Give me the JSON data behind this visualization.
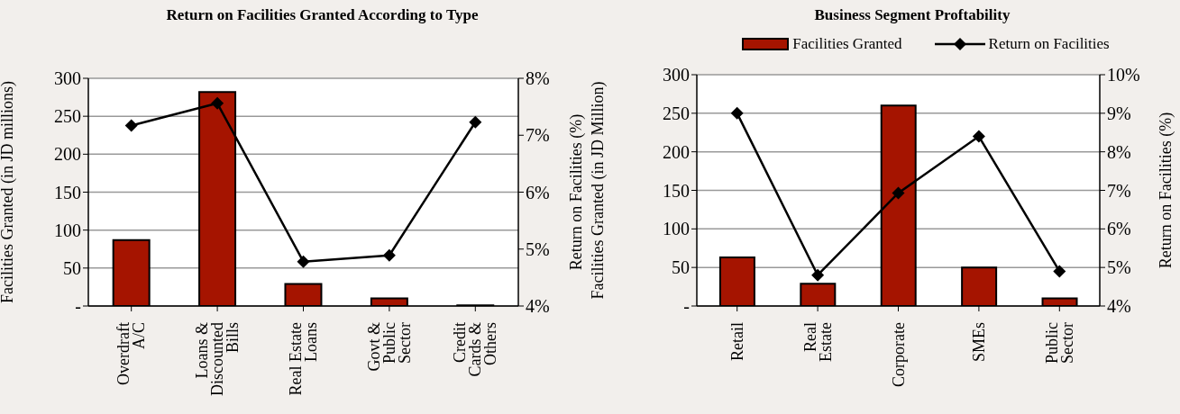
{
  "chart_data": [
    {
      "type": "bar",
      "title": "Return on Facilities Granted According to Type",
      "categories": [
        "Overdraft\nA/C",
        "Loans &\nDiscounted\nBills",
        "Real Estate\nLoans",
        "Govt &\nPublic\nSector",
        "Credit\nCards &\nOthers"
      ],
      "ylabel": "Facilities Granted (in JD millions)",
      "y2label": "Return on Facilities (%)",
      "series": [
        {
          "color": "#a51400",
          "values": [
            87,
            282,
            29,
            10,
            1
          ]
        },
        {
          "type": "line",
          "axis": "y2",
          "color": "#000000",
          "marker": "diamond",
          "values": [
            7.17,
            7.56,
            4.78,
            4.89,
            7.23
          ]
        }
      ],
      "ylim": [
        0,
        300
      ],
      "yticks": [
        {
          "value": 0,
          "label": "-"
        },
        50,
        100,
        150,
        200,
        250,
        300
      ],
      "y2lim": [
        4,
        8
      ],
      "y2ticks": [
        {
          "value": 4,
          "label": "4%"
        },
        {
          "value": 5,
          "label": "5%"
        },
        {
          "value": 6,
          "label": "6%"
        },
        {
          "value": 7,
          "label": "7%"
        },
        {
          "value": 8,
          "label": "8%"
        }
      ],
      "grid": "y",
      "legend": false
    },
    {
      "type": "bar",
      "title": "Business Segment Proftability",
      "categories": [
        "Retail",
        "Real\nEstate",
        "Corporate",
        "SMEs",
        "Public\nSector"
      ],
      "ylabel": "Facilities Granted (in JD Million)",
      "y2label": "Return on Facilities (%)",
      "series": [
        {
          "name": "Facilities Granted",
          "color": "#a51400",
          "values": [
            63,
            29,
            260,
            50,
            10
          ]
        },
        {
          "type": "line",
          "name": "Return on Facilities",
          "axis": "y2",
          "color": "#000000",
          "marker": "diamond",
          "values": [
            9.0,
            4.8,
            6.93,
            8.4,
            4.9
          ]
        }
      ],
      "ylim": [
        0,
        300
      ],
      "yticks": [
        {
          "value": 0,
          "label": "-"
        },
        50,
        100,
        150,
        200,
        250,
        300
      ],
      "y2lim": [
        4,
        10
      ],
      "y2ticks": [
        {
          "value": 4,
          "label": "4%"
        },
        {
          "value": 5,
          "label": "5%"
        },
        {
          "value": 6,
          "label": "6%"
        },
        {
          "value": 7,
          "label": "7%"
        },
        {
          "value": 8,
          "label": "8%"
        },
        {
          "value": 9,
          "label": "9%"
        },
        {
          "value": 10,
          "label": "10%"
        }
      ],
      "grid": "y",
      "legend": "top"
    }
  ]
}
